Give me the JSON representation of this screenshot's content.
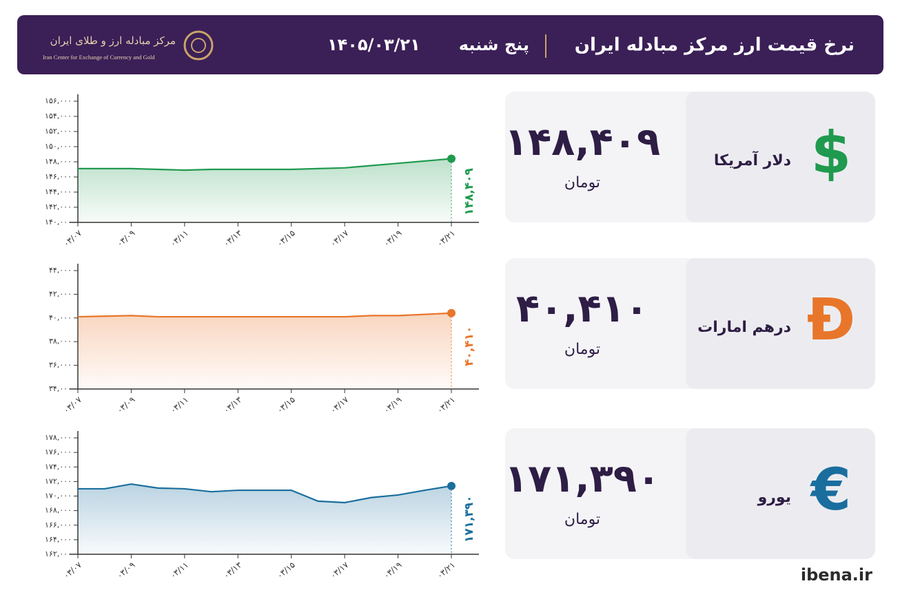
{
  "header": {
    "title": "نرخ قیمت ارز مرکز مبادله ایران",
    "day": "پنج شنبه",
    "date": "۱۴۰۵/۰۳/۲۱",
    "logo_fa": "مرکز مبادله ارز و طلای ایران",
    "logo_en": "Iran Center for Exchange of Currency and Gold"
  },
  "cards": [
    {
      "symbol": "$",
      "name": "دلار آمریکا",
      "price": "۱۴۸,۴۰۹",
      "unit": "تومان"
    },
    {
      "symbol": "Đ",
      "name": "درهم امارات",
      "price": "۴۰,۴۱۰",
      "unit": "تومان"
    },
    {
      "symbol": "€",
      "name": "یورو",
      "price": "۱۷۱,۳۹۰",
      "unit": "تومان"
    }
  ],
  "footer": "ibena.ir",
  "chart_data": [
    {
      "type": "line",
      "categories": [
        "۰۳/۰۷",
        null,
        "۰۳/۰۹",
        null,
        "۰۳/۱۱",
        null,
        "۰۳/۱۳",
        null,
        "۰۳/۱۵",
        null,
        "۰۳/۱۷",
        null,
        "۰۳/۱۹",
        null,
        "۰۳/۲۱"
      ],
      "series": [
        {
          "color": "#1f9a4e",
          "values": [
            147100,
            147100,
            147100,
            147000,
            146900,
            147000,
            147000,
            147000,
            147000,
            147100,
            147200,
            147500,
            147800,
            148100,
            148409
          ],
          "value_labels": [
            null,
            null,
            null,
            null,
            null,
            null,
            null,
            null,
            null,
            null,
            null,
            null,
            null,
            null,
            "۱۴۸,۴۰۹"
          ]
        }
      ],
      "ylim": [
        140000,
        156000
      ],
      "yticks": [
        {
          "value": 140000,
          "label": "۱۴۰,۰۰۰"
        },
        {
          "value": 142000,
          "label": "۱۴۲,۰۰۰"
        },
        {
          "value": 144000,
          "label": "۱۴۴,۰۰۰"
        },
        {
          "value": 146000,
          "label": "۱۴۶,۰۰۰"
        },
        {
          "value": 148000,
          "label": "۱۴۸,۰۰۰"
        },
        {
          "value": 150000,
          "label": "۱۵۰,۰۰۰"
        },
        {
          "value": 152000,
          "label": "۱۵۲,۰۰۰"
        },
        {
          "value": 154000,
          "label": "۱۵۴,۰۰۰"
        },
        {
          "value": 156000,
          "label": "۱۵۶,۰۰۰"
        }
      ]
    },
    {
      "type": "line",
      "categories": [
        "۰۳/۰۷",
        null,
        "۰۳/۰۹",
        null,
        "۰۳/۱۱",
        null,
        "۰۳/۱۳",
        null,
        "۰۳/۱۵",
        null,
        "۰۳/۱۷",
        null,
        "۰۳/۱۹",
        null,
        "۰۳/۲۱"
      ],
      "series": [
        {
          "color": "#e8762a",
          "values": [
            40100,
            40150,
            40200,
            40100,
            40100,
            40100,
            40100,
            40100,
            40100,
            40100,
            40100,
            40200,
            40200,
            40300,
            40410
          ],
          "value_labels": [
            null,
            null,
            null,
            null,
            null,
            null,
            null,
            null,
            null,
            null,
            null,
            null,
            null,
            null,
            "۴۰,۴۱۰"
          ]
        }
      ],
      "ylim": [
        34000,
        44000
      ],
      "yticks": [
        {
          "value": 34000,
          "label": "۳۴,۰۰۰"
        },
        {
          "value": 36000,
          "label": "۳۶,۰۰۰"
        },
        {
          "value": 38000,
          "label": "۳۸,۰۰۰"
        },
        {
          "value": 40000,
          "label": "۴۰,۰۰۰"
        },
        {
          "value": 42000,
          "label": "۴۲,۰۰۰"
        },
        {
          "value": 44000,
          "label": "۴۴,۰۰۰"
        }
      ]
    },
    {
      "type": "line",
      "categories": [
        "۰۳/۰۷",
        null,
        "۰۳/۰۹",
        null,
        "۰۳/۱۱",
        null,
        "۰۳/۱۳",
        null,
        "۰۳/۱۵",
        null,
        "۰۳/۱۷",
        null,
        "۰۳/۱۹",
        null,
        "۰۳/۲۱"
      ],
      "series": [
        {
          "color": "#1a6e9e",
          "values": [
            171000,
            171000,
            171650,
            171100,
            171000,
            170600,
            170800,
            170800,
            170800,
            169300,
            169100,
            169800,
            170150,
            170800,
            171390
          ],
          "value_labels": [
            null,
            null,
            null,
            null,
            null,
            null,
            null,
            null,
            null,
            null,
            null,
            null,
            null,
            null,
            "۱۷۱,۳۹۰"
          ]
        }
      ],
      "ylim": [
        162000,
        178000
      ],
      "yticks": [
        {
          "value": 162000,
          "label": "۱۶۲,۰۰۰"
        },
        {
          "value": 164000,
          "label": "۱۶۴,۰۰۰"
        },
        {
          "value": 166000,
          "label": "۱۶۶,۰۰۰"
        },
        {
          "value": 168000,
          "label": "۱۶۸,۰۰۰"
        },
        {
          "value": 170000,
          "label": "۱۷۰,۰۰۰"
        },
        {
          "value": 172000,
          "label": "۱۷۲,۰۰۰"
        },
        {
          "value": 174000,
          "label": "۱۷۴,۰۰۰"
        },
        {
          "value": 176000,
          "label": "۱۷۶,۰۰۰"
        },
        {
          "value": 178000,
          "label": "۱۷۸,۰۰۰"
        }
      ]
    }
  ]
}
